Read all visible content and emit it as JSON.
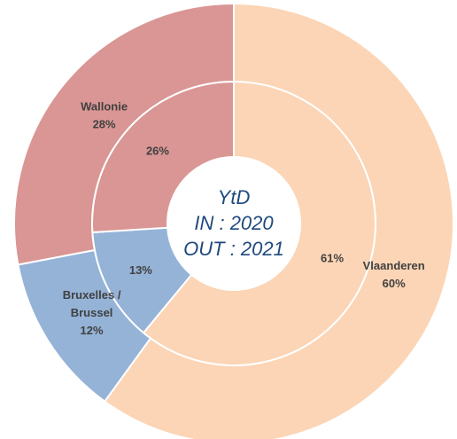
{
  "chart_data": {
    "type": "nested-donut",
    "center_text": [
      "YtD",
      "IN : 2020",
      "OUT : 2021"
    ],
    "categories": [
      [
        "Vlaanderen"
      ],
      [
        "Bruxelles /",
        "Brussel"
      ],
      [
        "Wallonie"
      ]
    ],
    "colors": [
      "#fbd5b5",
      "#95b3d7",
      "#d99694"
    ],
    "series": [
      {
        "ring": "inner",
        "values": [
          61,
          13,
          26
        ],
        "value_labels": [
          "61%",
          "13%",
          "26%"
        ]
      },
      {
        "ring": "outer",
        "values": [
          60,
          12,
          28
        ],
        "value_labels": [
          "60%",
          "12%",
          "28%"
        ]
      }
    ]
  }
}
